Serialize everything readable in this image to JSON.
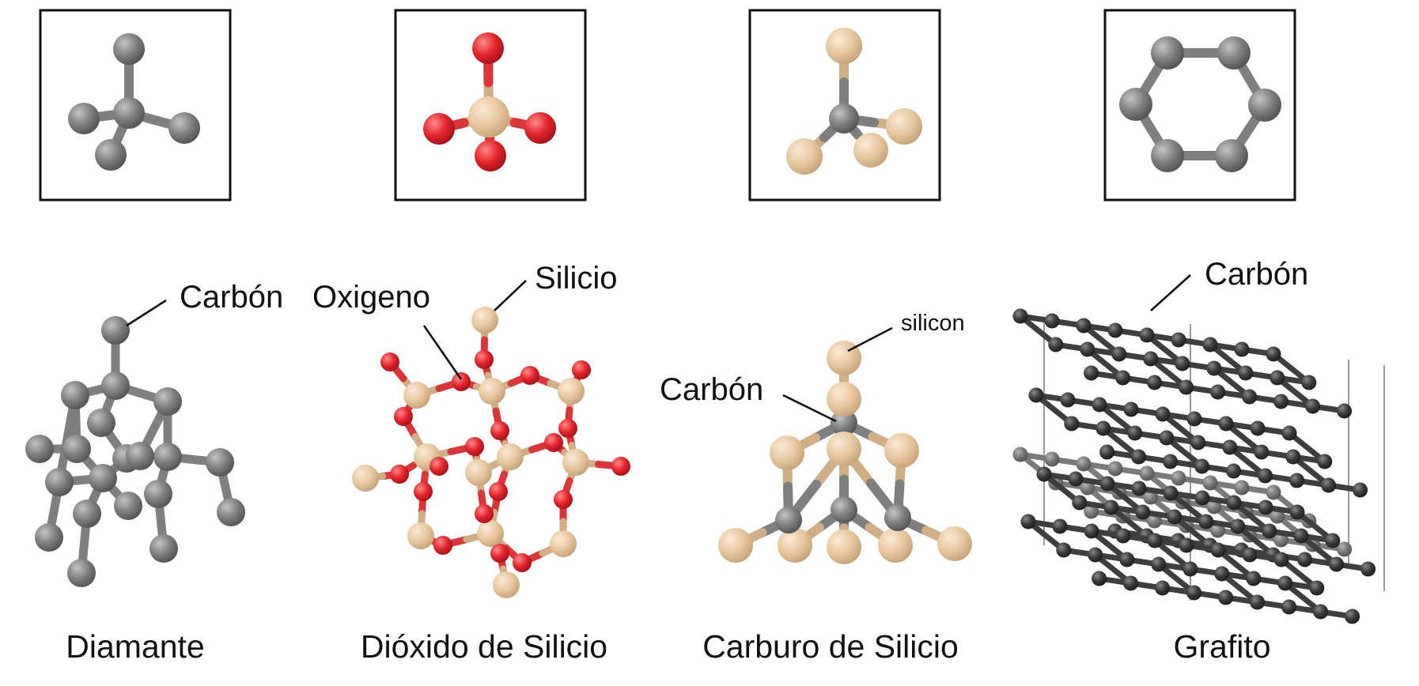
{
  "colors": {
    "carbon": "#808080",
    "silicon": "#e8c9a1",
    "oxygen": "#e3262d",
    "graphite": "#3b3b3b",
    "graphite_back": "#777777",
    "frame": "#111111"
  },
  "structures": [
    {
      "name": "Diamante",
      "labels": [
        "Carbón"
      ]
    },
    {
      "name": "Dióxido de Silicio",
      "labels": [
        "Oxigeno",
        "Silicio"
      ]
    },
    {
      "name": "Carburo de Silicio",
      "labels": [
        "silicon",
        "Carbón"
      ]
    },
    {
      "name": "Grafito",
      "labels": [
        "Carbón"
      ]
    }
  ]
}
